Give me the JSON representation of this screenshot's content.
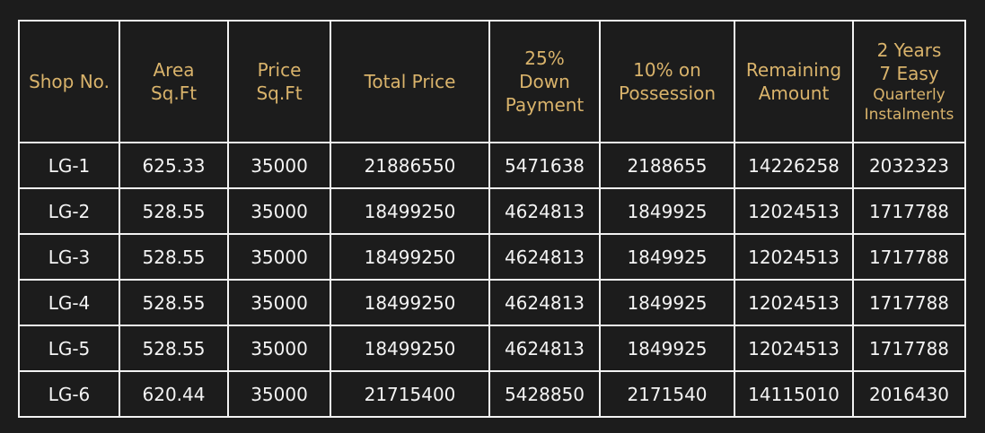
{
  "headers": [
    {
      "key": "shop",
      "lines": [
        "Shop No."
      ]
    },
    {
      "key": "area",
      "lines": [
        "Area",
        "Sq.Ft"
      ]
    },
    {
      "key": "price_sqft",
      "lines": [
        "Price",
        "Sq.Ft"
      ]
    },
    {
      "key": "total",
      "lines": [
        "Total Price"
      ]
    },
    {
      "key": "down",
      "lines": [
        "25%",
        "Down",
        "Payment"
      ]
    },
    {
      "key": "possession",
      "lines": [
        "10% on",
        "Possession"
      ]
    },
    {
      "key": "remaining",
      "lines": [
        "Remaining",
        "Amount"
      ]
    },
    {
      "key": "instalments",
      "lines": [
        "2 Years",
        "7 Easy",
        "Quarterly",
        "Instalments"
      ]
    }
  ],
  "rows": [
    [
      "LG-1",
      "625.33",
      "35000",
      "21886550",
      "5471638",
      "2188655",
      "14226258",
      "2032323"
    ],
    [
      "LG-2",
      "528.55",
      "35000",
      "18499250",
      "4624813",
      "1849925",
      "12024513",
      "1717788"
    ],
    [
      "LG-3",
      "528.55",
      "35000",
      "18499250",
      "4624813",
      "1849925",
      "12024513",
      "1717788"
    ],
    [
      "LG-4",
      "528.55",
      "35000",
      "18499250",
      "4624813",
      "1849925",
      "12024513",
      "1717788"
    ],
    [
      "LG-5",
      "528.55",
      "35000",
      "18499250",
      "4624813",
      "1849925",
      "12024513",
      "1717788"
    ],
    [
      "LG-6",
      "620.44",
      "35000",
      "21715400",
      "5428850",
      "2171540",
      "14115010",
      "2016430"
    ]
  ],
  "colors": {
    "background": "#1c1c1c",
    "header_text": "#d9b36b",
    "cell_text": "#f4f4f4",
    "border": "#f2f2f2"
  }
}
